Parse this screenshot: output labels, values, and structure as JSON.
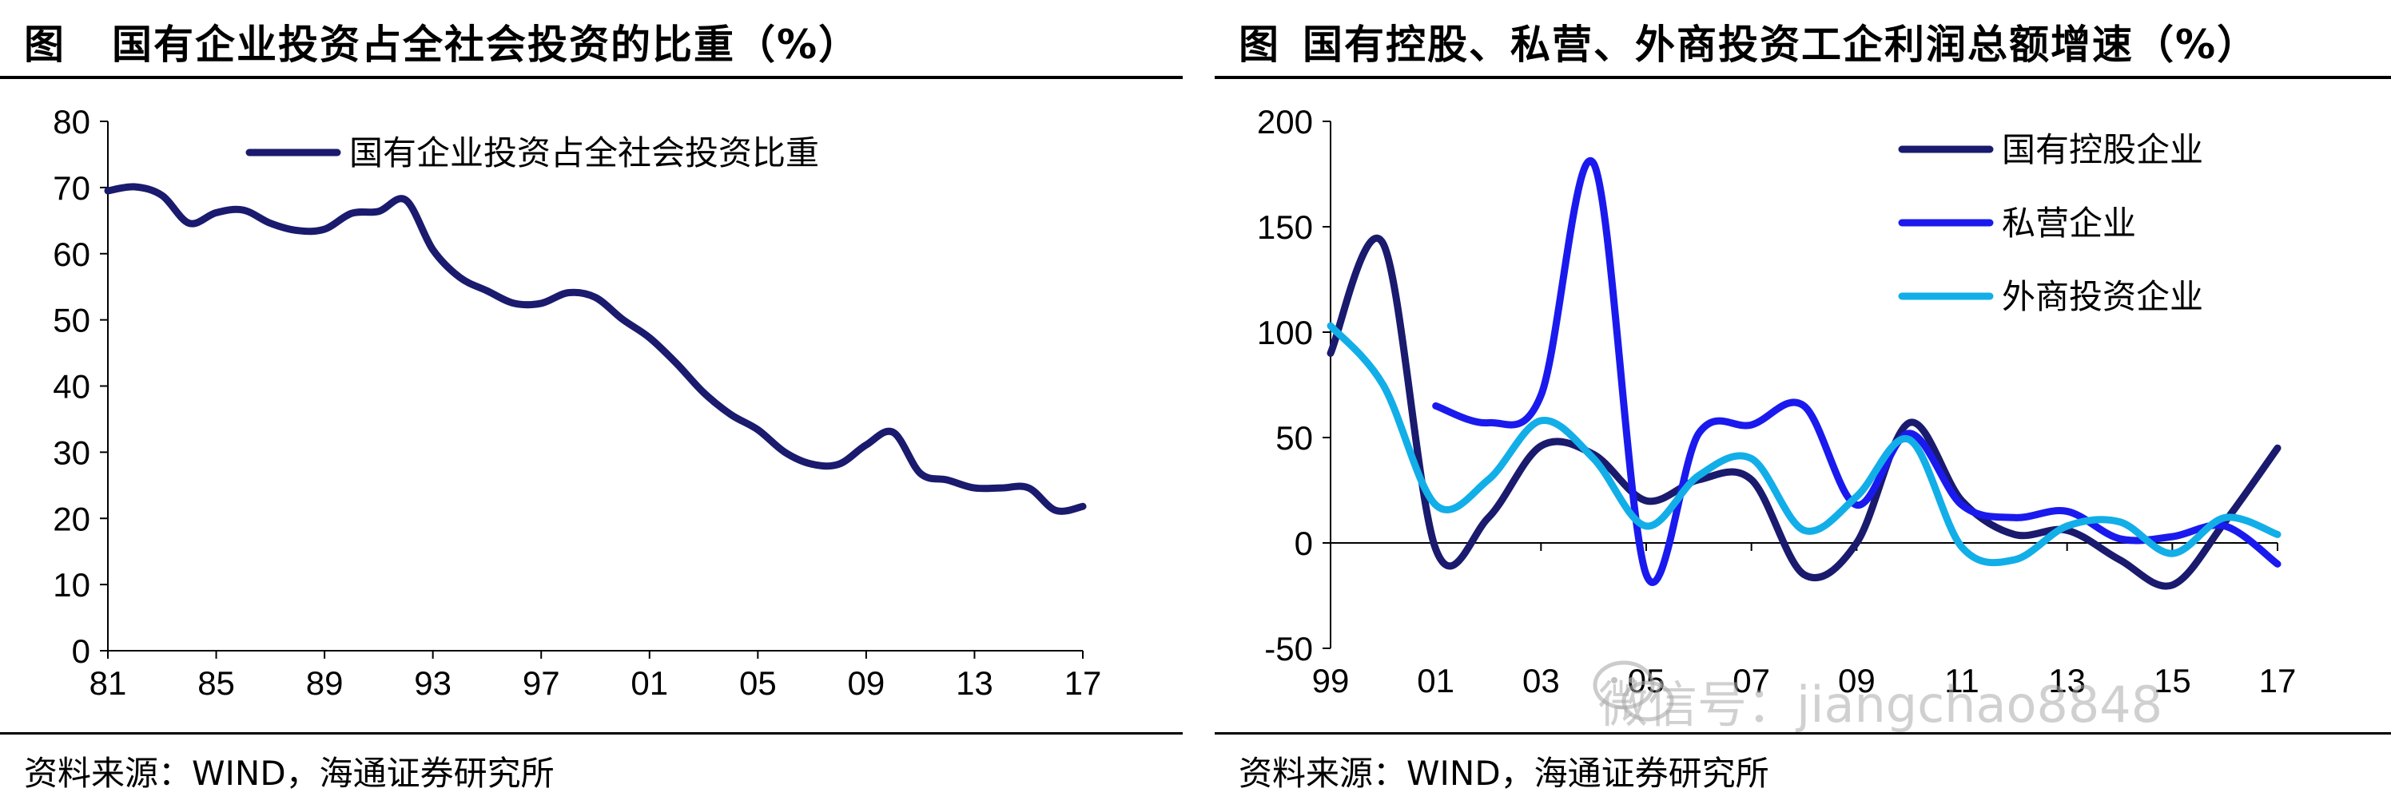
{
  "left": {
    "fig_label": "图",
    "title": "国有企业投资占全社会投资的比重（%）",
    "source": "资料来源：WIND，海通证券研究所",
    "chart_data": {
      "type": "line",
      "title": "国有企业投资占全社会投资的比重（%）",
      "xlabel": "",
      "ylabel": "",
      "ylim": [
        0,
        80
      ],
      "yticks": [
        "0",
        "10",
        "20",
        "30",
        "40",
        "50",
        "60",
        "70",
        "80"
      ],
      "xtick_labels": [
        "81",
        "85",
        "89",
        "93",
        "97",
        "01",
        "05",
        "09",
        "13",
        "17"
      ],
      "xtick_years": [
        1981,
        1985,
        1989,
        1993,
        1997,
        2001,
        2005,
        2009,
        2013,
        2017
      ],
      "xlim": [
        1981,
        2017
      ],
      "grid": false,
      "legend_position": "top-center",
      "series": [
        {
          "name": "国有企业投资占全社会投资比重",
          "color": "#1a1a6e",
          "x": [
            1981,
            1982,
            1983,
            1984,
            1985,
            1986,
            1987,
            1988,
            1989,
            1990,
            1991,
            1992,
            1993,
            1994,
            1995,
            1996,
            1997,
            1998,
            1999,
            2000,
            2001,
            2002,
            2003,
            2004,
            2005,
            2006,
            2007,
            2008,
            2009,
            2010,
            2011,
            2012,
            2013,
            2014,
            2015,
            2016,
            2017
          ],
          "y": [
            69.5,
            70.1,
            68.8,
            64.6,
            66.2,
            66.6,
            64.6,
            63.5,
            63.7,
            66.1,
            66.4,
            68.1,
            60.6,
            56.4,
            54.4,
            52.5,
            52.5,
            54.1,
            53.4,
            50.1,
            47.3,
            43.4,
            39.0,
            35.7,
            33.4,
            30.0,
            28.2,
            28.2,
            31.1,
            33.0,
            26.8,
            25.8,
            24.6,
            24.6,
            24.6,
            21.2,
            21.8
          ]
        }
      ]
    }
  },
  "right": {
    "fig_label": "图",
    "title": "国有控股、私营、外商投资工企利润总额增速（%）",
    "source": "资料来源：WIND，海通证券研究所",
    "watermark": "微信号：jiangchao8848",
    "chart_data": {
      "type": "line",
      "title": "国有控股、私营、外商投资工企利润总额增速（%）",
      "xlabel": "",
      "ylabel": "",
      "ylim": [
        -50,
        200
      ],
      "yticks": [
        "-50",
        "0",
        "50",
        "100",
        "150",
        "200"
      ],
      "xtick_labels": [
        "99",
        "01",
        "03",
        "05",
        "07",
        "09",
        "11",
        "13",
        "15",
        "17"
      ],
      "xtick_years": [
        1999,
        2001,
        2003,
        2005,
        2007,
        2009,
        2011,
        2013,
        2015,
        2017
      ],
      "xlim": [
        1999,
        2017
      ],
      "grid": false,
      "legend_position": "top-right",
      "series": [
        {
          "name": "国有控股企业",
          "color": "#1a1a6e",
          "x": [
            1999,
            2000,
            2001,
            2002,
            2003,
            2004,
            2005,
            2006,
            2007,
            2008,
            2009,
            2010,
            2011,
            2012,
            2013,
            2014,
            2015,
            2016,
            2017
          ],
          "y": [
            90,
            142,
            -3,
            12,
            46,
            42,
            20,
            30,
            30,
            -15,
            0,
            57,
            20,
            4,
            6,
            -8,
            -20,
            10,
            45
          ]
        },
        {
          "name": "私营企业",
          "color": "#1a1aee",
          "x": [
            2001,
            2002,
            2003,
            2004,
            2005,
            2006,
            2007,
            2008,
            2009,
            2010,
            2011,
            2012,
            2013,
            2014,
            2015,
            2016,
            2017
          ],
          "y": [
            65,
            57,
            70,
            180,
            -15,
            52,
            56,
            65,
            18,
            52,
            18,
            12,
            15,
            2,
            3,
            8,
            -10
          ]
        },
        {
          "name": "外商投资企业",
          "color": "#12aee8",
          "x": [
            1999,
            2000,
            2001,
            2002,
            2003,
            2004,
            2005,
            2006,
            2007,
            2008,
            2009,
            2010,
            2011,
            2012,
            2013,
            2014,
            2015,
            2016,
            2017
          ],
          "y": [
            103,
            75,
            18,
            30,
            58,
            40,
            8,
            32,
            40,
            6,
            22,
            49,
            -2,
            -8,
            8,
            10,
            -5,
            12,
            4
          ]
        }
      ]
    }
  }
}
